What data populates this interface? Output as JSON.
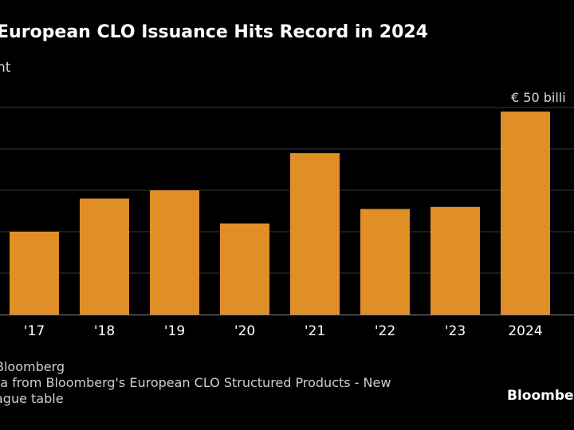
{
  "header": {
    "title": "European CLO Issuance Hits Record in 2024",
    "subtitle": "nt"
  },
  "footer": {
    "source_line1": "Bloomberg",
    "source_line2": "ta from Bloomberg's European CLO Structured Products - New",
    "source_line3": "ague table",
    "brand": "Bloomberg"
  },
  "colors": {
    "bar": "#E08E26",
    "background": "#000000",
    "grid": "#3a3a3a",
    "baseline": "#888888"
  },
  "chart_data": {
    "type": "bar",
    "title": "European CLO Issuance Hits Record in 2024",
    "categories": [
      "'17",
      "'18",
      "'19",
      "'20",
      "'21",
      "'22",
      "'23",
      "2024"
    ],
    "values": [
      20,
      28,
      30,
      22,
      39,
      25.5,
      26,
      49
    ],
    "ylim": [
      0,
      55
    ],
    "yticks": [
      0,
      10,
      20,
      30,
      40,
      50
    ],
    "top_tick_label": "€ 50 billi",
    "grid": true,
    "xlabel": "",
    "ylabel": ""
  }
}
